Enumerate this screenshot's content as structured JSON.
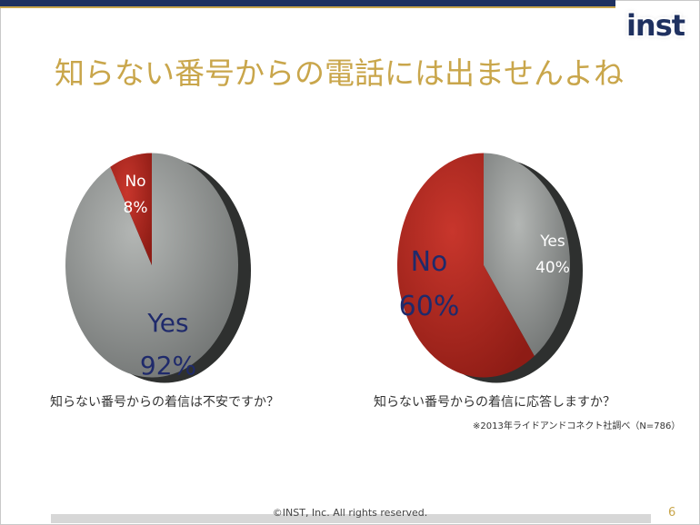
{
  "logo": {
    "text": "inst"
  },
  "title": "知らない番号からの電話には出ませんよね",
  "colors": {
    "accent_gold": "#c9a64b",
    "navy": "#1f3160",
    "yes_gray": "#8a8d8b",
    "no_red": "#b3271f"
  },
  "chart_data": [
    {
      "type": "pie",
      "question": "知らない番号からの着信は不安ですか？",
      "slices": [
        {
          "label": "Yes",
          "value": 92,
          "value_label": "92%"
        },
        {
          "label": "No",
          "value": 8,
          "value_label": "8%"
        }
      ]
    },
    {
      "type": "pie",
      "question": "知らない番号からの着信に応答しますか？",
      "slices": [
        {
          "label": "Yes",
          "value": 40,
          "value_label": "40%"
        },
        {
          "label": "No",
          "value": 60,
          "value_label": "60%"
        }
      ]
    }
  ],
  "source": "※2013年ライドアンドコネクト社調べ（N=786）",
  "footer": {
    "copyright": "©INST, Inc. All rights reserved.",
    "page_number": "6"
  }
}
